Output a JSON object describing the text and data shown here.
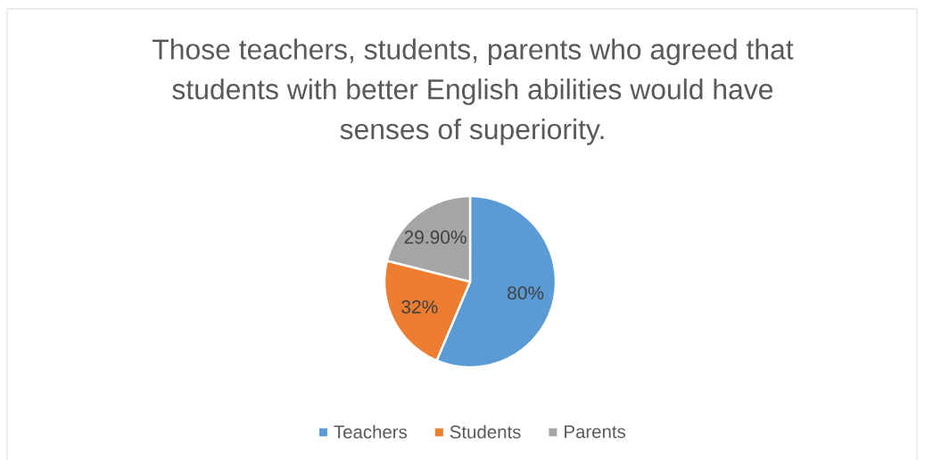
{
  "chart_data": {
    "type": "pie",
    "title": "Those teachers, students, parents who agreed that students with better English abilities would have senses of superiority.",
    "categories": [
      "Teachers",
      "Students",
      "Parents"
    ],
    "values": [
      80,
      32,
      29.9
    ],
    "colors": [
      "#5b9bd5",
      "#ed7d31",
      "#a5a5a5"
    ],
    "value_labels": [
      "80%",
      "32%",
      "29.90%"
    ],
    "legend": "bottom"
  }
}
